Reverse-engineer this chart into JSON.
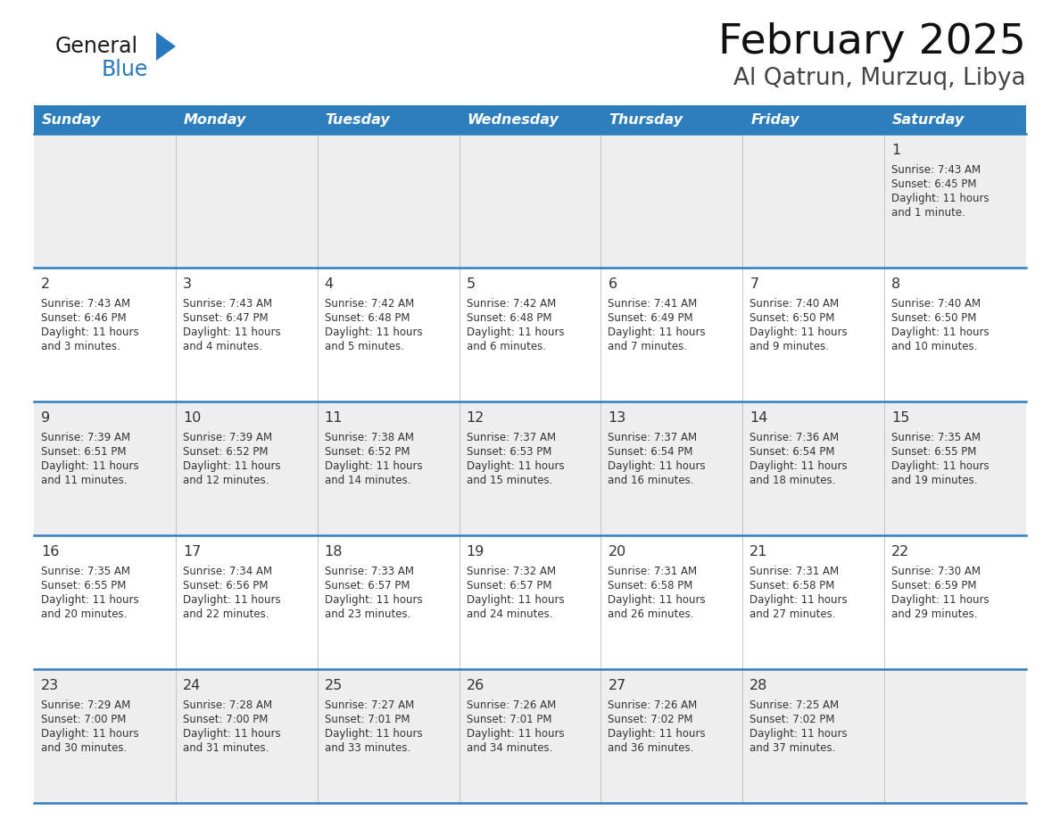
{
  "title": "February 2025",
  "subtitle": "Al Qatrun, Murzuq, Libya",
  "header_bg": "#2E7EBE",
  "header_text_color": "#FFFFFF",
  "days_of_week": [
    "Sunday",
    "Monday",
    "Tuesday",
    "Wednesday",
    "Thursday",
    "Friday",
    "Saturday"
  ],
  "cell_bg_row0": "#EEEEEE",
  "cell_bg_row1": "#FFFFFF",
  "cell_bg_row2": "#EEEEEE",
  "cell_bg_row3": "#FFFFFF",
  "cell_bg_row4": "#EEEEEE",
  "divider_color": "#2E7EBE",
  "text_color": "#333333",
  "logo_general_color": "#1a1a1a",
  "logo_blue_color": "#2878BE",
  "calendar_data": [
    {
      "day": 1,
      "col": 6,
      "row": 0,
      "sunrise": "7:43 AM",
      "sunset": "6:45 PM",
      "daylight": "11 hours and 1 minute."
    },
    {
      "day": 2,
      "col": 0,
      "row": 1,
      "sunrise": "7:43 AM",
      "sunset": "6:46 PM",
      "daylight": "11 hours and 3 minutes."
    },
    {
      "day": 3,
      "col": 1,
      "row": 1,
      "sunrise": "7:43 AM",
      "sunset": "6:47 PM",
      "daylight": "11 hours and 4 minutes."
    },
    {
      "day": 4,
      "col": 2,
      "row": 1,
      "sunrise": "7:42 AM",
      "sunset": "6:48 PM",
      "daylight": "11 hours and 5 minutes."
    },
    {
      "day": 5,
      "col": 3,
      "row": 1,
      "sunrise": "7:42 AM",
      "sunset": "6:48 PM",
      "daylight": "11 hours and 6 minutes."
    },
    {
      "day": 6,
      "col": 4,
      "row": 1,
      "sunrise": "7:41 AM",
      "sunset": "6:49 PM",
      "daylight": "11 hours and 7 minutes."
    },
    {
      "day": 7,
      "col": 5,
      "row": 1,
      "sunrise": "7:40 AM",
      "sunset": "6:50 PM",
      "daylight": "11 hours and 9 minutes."
    },
    {
      "day": 8,
      "col": 6,
      "row": 1,
      "sunrise": "7:40 AM",
      "sunset": "6:50 PM",
      "daylight": "11 hours and 10 minutes."
    },
    {
      "day": 9,
      "col": 0,
      "row": 2,
      "sunrise": "7:39 AM",
      "sunset": "6:51 PM",
      "daylight": "11 hours and 11 minutes."
    },
    {
      "day": 10,
      "col": 1,
      "row": 2,
      "sunrise": "7:39 AM",
      "sunset": "6:52 PM",
      "daylight": "11 hours and 12 minutes."
    },
    {
      "day": 11,
      "col": 2,
      "row": 2,
      "sunrise": "7:38 AM",
      "sunset": "6:52 PM",
      "daylight": "11 hours and 14 minutes."
    },
    {
      "day": 12,
      "col": 3,
      "row": 2,
      "sunrise": "7:37 AM",
      "sunset": "6:53 PM",
      "daylight": "11 hours and 15 minutes."
    },
    {
      "day": 13,
      "col": 4,
      "row": 2,
      "sunrise": "7:37 AM",
      "sunset": "6:54 PM",
      "daylight": "11 hours and 16 minutes."
    },
    {
      "day": 14,
      "col": 5,
      "row": 2,
      "sunrise": "7:36 AM",
      "sunset": "6:54 PM",
      "daylight": "11 hours and 18 minutes."
    },
    {
      "day": 15,
      "col": 6,
      "row": 2,
      "sunrise": "7:35 AM",
      "sunset": "6:55 PM",
      "daylight": "11 hours and 19 minutes."
    },
    {
      "day": 16,
      "col": 0,
      "row": 3,
      "sunrise": "7:35 AM",
      "sunset": "6:55 PM",
      "daylight": "11 hours and 20 minutes."
    },
    {
      "day": 17,
      "col": 1,
      "row": 3,
      "sunrise": "7:34 AM",
      "sunset": "6:56 PM",
      "daylight": "11 hours and 22 minutes."
    },
    {
      "day": 18,
      "col": 2,
      "row": 3,
      "sunrise": "7:33 AM",
      "sunset": "6:57 PM",
      "daylight": "11 hours and 23 minutes."
    },
    {
      "day": 19,
      "col": 3,
      "row": 3,
      "sunrise": "7:32 AM",
      "sunset": "6:57 PM",
      "daylight": "11 hours and 24 minutes."
    },
    {
      "day": 20,
      "col": 4,
      "row": 3,
      "sunrise": "7:31 AM",
      "sunset": "6:58 PM",
      "daylight": "11 hours and 26 minutes."
    },
    {
      "day": 21,
      "col": 5,
      "row": 3,
      "sunrise": "7:31 AM",
      "sunset": "6:58 PM",
      "daylight": "11 hours and 27 minutes."
    },
    {
      "day": 22,
      "col": 6,
      "row": 3,
      "sunrise": "7:30 AM",
      "sunset": "6:59 PM",
      "daylight": "11 hours and 29 minutes."
    },
    {
      "day": 23,
      "col": 0,
      "row": 4,
      "sunrise": "7:29 AM",
      "sunset": "7:00 PM",
      "daylight": "11 hours and 30 minutes."
    },
    {
      "day": 24,
      "col": 1,
      "row": 4,
      "sunrise": "7:28 AM",
      "sunset": "7:00 PM",
      "daylight": "11 hours and 31 minutes."
    },
    {
      "day": 25,
      "col": 2,
      "row": 4,
      "sunrise": "7:27 AM",
      "sunset": "7:01 PM",
      "daylight": "11 hours and 33 minutes."
    },
    {
      "day": 26,
      "col": 3,
      "row": 4,
      "sunrise": "7:26 AM",
      "sunset": "7:01 PM",
      "daylight": "11 hours and 34 minutes."
    },
    {
      "day": 27,
      "col": 4,
      "row": 4,
      "sunrise": "7:26 AM",
      "sunset": "7:02 PM",
      "daylight": "11 hours and 36 minutes."
    },
    {
      "day": 28,
      "col": 5,
      "row": 4,
      "sunrise": "7:25 AM",
      "sunset": "7:02 PM",
      "daylight": "11 hours and 37 minutes."
    }
  ],
  "num_rows": 5,
  "num_cols": 7,
  "fig_width": 11.88,
  "fig_height": 9.18,
  "dpi": 100
}
